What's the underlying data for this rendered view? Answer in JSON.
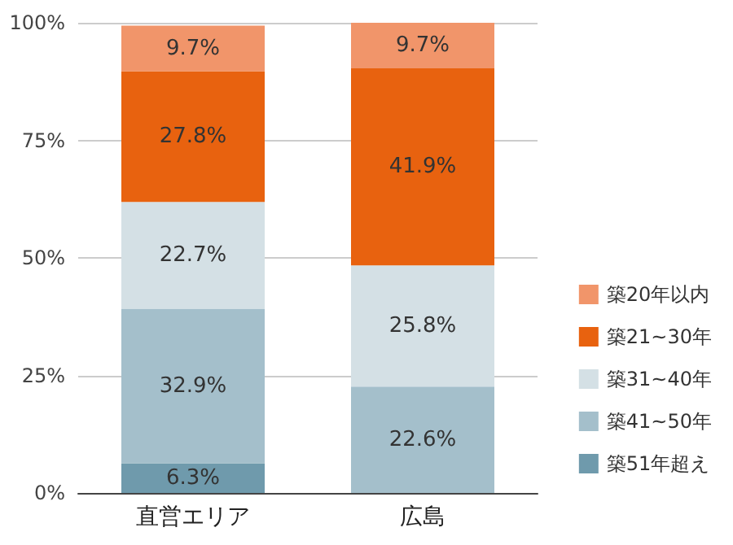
{
  "chart_data": {
    "type": "bar",
    "stacked": true,
    "categories": [
      "直営エリア",
      "広島"
    ],
    "series": [
      {
        "name": "築51年超え",
        "color": "#6f9aac",
        "values": [
          6.3,
          null
        ],
        "value_labels": [
          "6.3%",
          null
        ]
      },
      {
        "name": "築41~50年",
        "color": "#a4bfcb",
        "values": [
          32.9,
          22.6
        ],
        "value_labels": [
          "32.9%",
          "22.6%"
        ]
      },
      {
        "name": "築31~40年",
        "color": "#d4e0e5",
        "values": [
          22.7,
          25.8
        ],
        "value_labels": [
          "22.7%",
          "25.8%"
        ]
      },
      {
        "name": "築21~30年",
        "color": "#e8620f",
        "values": [
          27.8,
          41.9
        ],
        "value_labels": [
          "27.8%",
          "41.9%"
        ]
      },
      {
        "name": "築20年以内",
        "color": "#f1956a",
        "values": [
          9.7,
          9.7
        ],
        "value_labels": [
          "9.7%",
          "9.7%"
        ]
      }
    ],
    "ylim": [
      0,
      100
    ],
    "yticks": [
      {
        "value": 0,
        "label": "0%"
      },
      {
        "value": 25,
        "label": "25%"
      },
      {
        "value": 50,
        "label": "50%"
      },
      {
        "value": 75,
        "label": "75%"
      },
      {
        "value": 100,
        "label": "100%"
      }
    ],
    "grid": "y",
    "legend": "right"
  }
}
